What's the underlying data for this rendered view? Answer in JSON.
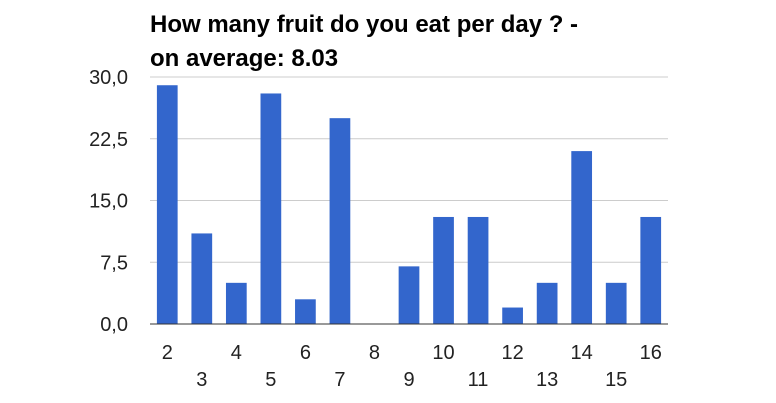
{
  "chart_data": {
    "type": "bar",
    "title_lines": [
      "How many fruit do you eat per day ? -",
      "on average: 8.03"
    ],
    "categories": [
      "2",
      "3",
      "4",
      "5",
      "6",
      "7",
      "8",
      "9",
      "10",
      "11",
      "12",
      "13",
      "14",
      "15",
      "16"
    ],
    "values": [
      29,
      11,
      5,
      28,
      3,
      25,
      0,
      7,
      13,
      13,
      2,
      5,
      21,
      5,
      13
    ],
    "ylim": [
      0,
      30
    ],
    "yticks": [
      "0,0",
      "7,5",
      "15,0",
      "22,5",
      "30,0"
    ],
    "ytick_values": [
      0,
      7.5,
      15,
      22.5,
      30
    ],
    "grid": true,
    "bar_color": "#3366cc",
    "grid_color": "#cccccc",
    "axis_color": "#333333"
  }
}
